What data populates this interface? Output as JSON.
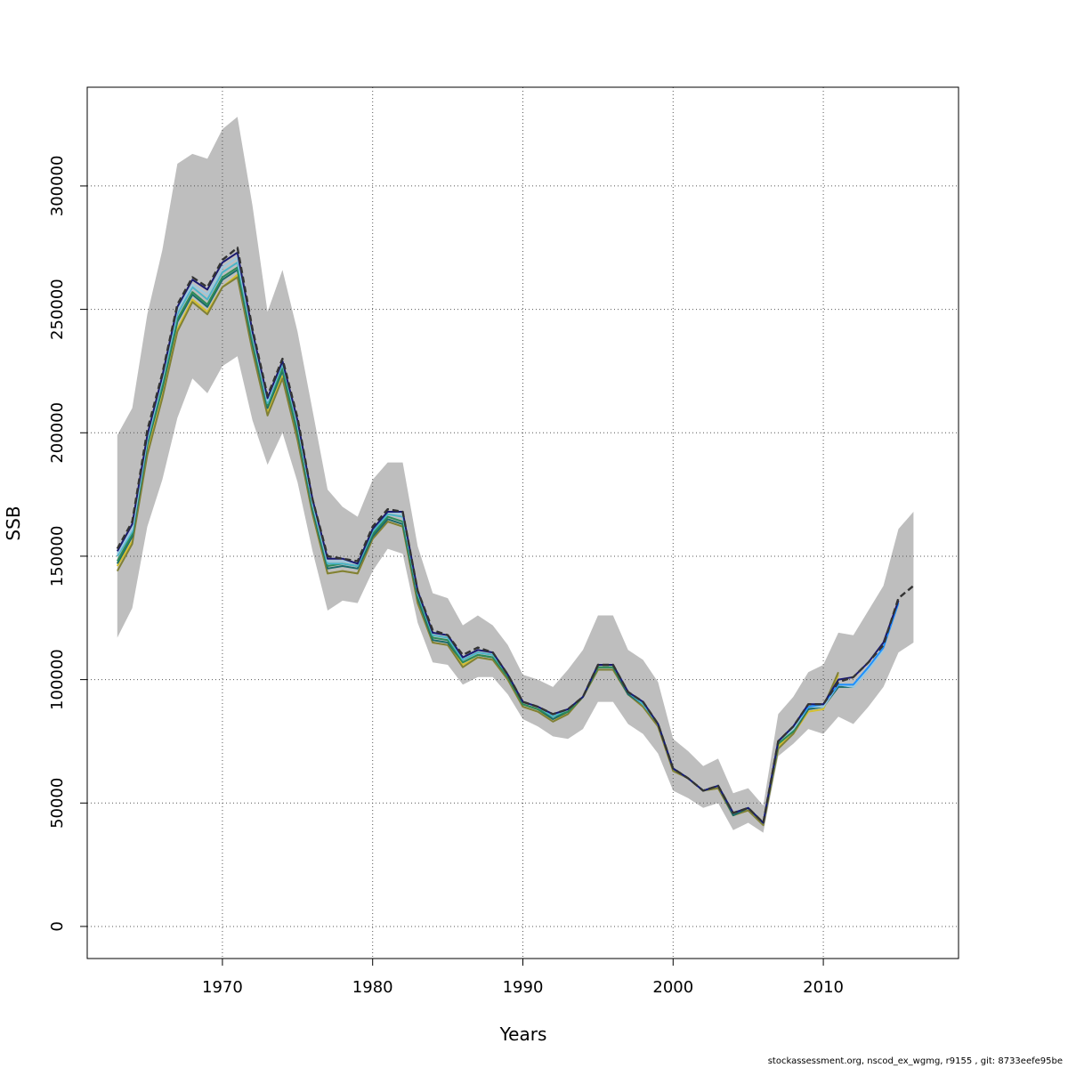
{
  "chart_data": {
    "type": "line",
    "xlabel": "Years",
    "ylabel": "SSB",
    "xlim": [
      1961,
      2019
    ],
    "ylim": [
      -13000,
      340000
    ],
    "x_ticks": [
      1970,
      1980,
      1990,
      2000,
      2010
    ],
    "y_ticks": [
      0,
      50000,
      100000,
      150000,
      200000,
      250000,
      300000
    ],
    "grid": true,
    "band_color": "#bebebe",
    "band": {
      "x": [
        1963,
        1964,
        1965,
        1966,
        1967,
        1968,
        1969,
        1970,
        1971,
        1972,
        1973,
        1974,
        1975,
        1976,
        1977,
        1978,
        1979,
        1980,
        1981,
        1982,
        1983,
        1984,
        1985,
        1986,
        1987,
        1988,
        1989,
        1990,
        1991,
        1992,
        1993,
        1994,
        1995,
        1996,
        1997,
        1998,
        1999,
        2000,
        2001,
        2002,
        2003,
        2004,
        2005,
        2006,
        2007,
        2008,
        2009,
        2010,
        2011,
        2012,
        2013,
        2014,
        2015,
        2016
      ],
      "lower": [
        117000,
        129000,
        162000,
        181000,
        206000,
        222000,
        216000,
        227000,
        231000,
        205000,
        187000,
        200000,
        180000,
        152000,
        128000,
        132000,
        131000,
        144000,
        153000,
        151000,
        123000,
        107000,
        106000,
        98000,
        101000,
        101000,
        94000,
        84000,
        81000,
        77000,
        76000,
        80000,
        91000,
        91000,
        82000,
        78000,
        70000,
        55000,
        52000,
        48000,
        50000,
        39000,
        42000,
        38000,
        69000,
        74000,
        80000,
        78000,
        85000,
        82000,
        89000,
        97000,
        111000,
        115000
      ],
      "upper": [
        199000,
        210000,
        248000,
        274000,
        309000,
        313000,
        311000,
        323000,
        328000,
        292000,
        249000,
        266000,
        241000,
        209000,
        177000,
        170000,
        166000,
        181000,
        188000,
        188000,
        154000,
        135000,
        133000,
        122000,
        126000,
        122000,
        114000,
        102000,
        100000,
        97000,
        104000,
        112000,
        126000,
        126000,
        112000,
        108000,
        99000,
        76000,
        71000,
        65000,
        68000,
        54000,
        56000,
        49000,
        86000,
        93000,
        103000,
        106000,
        119000,
        118000,
        128000,
        138000,
        161000,
        168000
      ]
    },
    "series": [
      {
        "color": "#d4c02c",
        "width": 2,
        "dash": "",
        "x": [
          1963,
          1964,
          1965,
          1966,
          1967,
          1968,
          1969,
          1970,
          1971,
          1972,
          1973,
          1974,
          1975,
          1976,
          1977,
          1978,
          1979,
          1980,
          1981,
          1982,
          1983,
          1984,
          1985,
          1986,
          1987,
          1988,
          1989,
          1990,
          1991,
          1992,
          1993,
          1994,
          1995,
          1996,
          1997,
          1998,
          1999,
          2000,
          2001,
          2002,
          2003,
          2004,
          2005,
          2006,
          2007,
          2008,
          2009,
          2010,
          2011
        ],
        "y": [
          146000,
          156000,
          192000,
          215000,
          242000,
          254000,
          249000,
          259000,
          264000,
          234000,
          208000,
          223000,
          198000,
          167000,
          143000,
          144000,
          143000,
          157000,
          164000,
          162000,
          131000,
          115000,
          114000,
          106000,
          109000,
          108000,
          100000,
          89000,
          87000,
          84000,
          86000,
          93000,
          104000,
          104000,
          94000,
          89000,
          81000,
          63000,
          60000,
          55000,
          56000,
          45000,
          47000,
          42000,
          73000,
          78000,
          87000,
          88000,
          102000
        ]
      },
      {
        "color": "#808036",
        "width": 2,
        "dash": "",
        "x": [
          1963,
          1964,
          1965,
          1966,
          1967,
          1968,
          1969,
          1970,
          1971,
          1972,
          1973,
          1974,
          1975,
          1976,
          1977,
          1978,
          1979,
          1980,
          1981,
          1982,
          1983,
          1984,
          1985,
          1986,
          1987,
          1988,
          1989,
          1990,
          1991,
          1992,
          1993,
          1994,
          1995,
          1996,
          1997,
          1998,
          1999,
          2000,
          2001,
          2002,
          2003,
          2004,
          2005,
          2006,
          2007,
          2008,
          2009,
          2010,
          2011
        ],
        "y": [
          144000,
          155000,
          191000,
          214000,
          241000,
          253000,
          248000,
          259000,
          263000,
          233000,
          207000,
          222000,
          197000,
          167000,
          143000,
          144000,
          143000,
          157000,
          164000,
          162000,
          131000,
          115000,
          114000,
          105000,
          109000,
          108000,
          100000,
          89000,
          87000,
          83000,
          86000,
          93000,
          104000,
          104000,
          94000,
          89000,
          81000,
          63000,
          60000,
          55000,
          56000,
          45000,
          47000,
          41000,
          72000,
          78000,
          88000,
          89000,
          103000
        ]
      },
      {
        "color": "#1a6b6b",
        "width": 2,
        "dash": "",
        "x": [
          1963,
          1964,
          1965,
          1966,
          1967,
          1968,
          1969,
          1970,
          1971,
          1972,
          1973,
          1974,
          1975,
          1976,
          1977,
          1978,
          1979,
          1980,
          1981,
          1982,
          1983,
          1984,
          1985,
          1986,
          1987,
          1988,
          1989,
          1990,
          1991,
          1992,
          1993,
          1994,
          1995,
          1996,
          1997,
          1998,
          1999,
          2000,
          2001,
          2002,
          2003,
          2004,
          2005,
          2006,
          2007,
          2008,
          2009,
          2010,
          2011,
          2012
        ],
        "y": [
          147000,
          158000,
          195000,
          218000,
          245000,
          256000,
          251000,
          262000,
          266000,
          236000,
          210000,
          225000,
          200000,
          169000,
          145000,
          146000,
          145000,
          158000,
          165000,
          163000,
          133000,
          116000,
          115000,
          107000,
          110000,
          109000,
          101000,
          90000,
          88000,
          84000,
          87000,
          93000,
          105000,
          105000,
          94000,
          90000,
          82000,
          64000,
          60000,
          55000,
          57000,
          45000,
          48000,
          42000,
          74000,
          79000,
          88000,
          89000,
          97000,
          97000
        ]
      },
      {
        "color": "#2e8b57",
        "width": 2,
        "dash": "",
        "x": [
          1963,
          1964,
          1965,
          1966,
          1967,
          1968,
          1969,
          1970,
          1971,
          1972,
          1973,
          1974,
          1975,
          1976,
          1977,
          1978,
          1979,
          1980,
          1981,
          1982,
          1983,
          1984,
          1985,
          1986,
          1987,
          1988,
          1989,
          1990,
          1991,
          1992,
          1993,
          1994,
          1995,
          1996,
          1997,
          1998,
          1999,
          2000,
          2001,
          2002,
          2003,
          2004,
          2005,
          2006,
          2007,
          2008,
          2009,
          2010,
          2011,
          2012
        ],
        "y": [
          148000,
          159000,
          196000,
          219000,
          246000,
          257000,
          252000,
          263000,
          267000,
          237000,
          211000,
          226000,
          201000,
          170000,
          146000,
          147000,
          146000,
          159000,
          166000,
          164000,
          134000,
          117000,
          116000,
          107000,
          110000,
          109000,
          101000,
          90000,
          88000,
          85000,
          87000,
          93000,
          105000,
          105000,
          95000,
          90000,
          82000,
          64000,
          60000,
          55000,
          57000,
          46000,
          48000,
          42000,
          74000,
          79000,
          89000,
          89000,
          98000,
          97000
        ]
      },
      {
        "color": "#4ab4c8",
        "width": 2,
        "dash": "",
        "x": [
          1963,
          1964,
          1965,
          1966,
          1967,
          1968,
          1969,
          1970,
          1971,
          1972,
          1973,
          1974,
          1975,
          1976,
          1977,
          1978,
          1979,
          1980,
          1981,
          1982,
          1983,
          1984,
          1985,
          1986,
          1987,
          1988,
          1989,
          1990,
          1991,
          1992,
          1993,
          1994,
          1995,
          1996,
          1997,
          1998,
          1999,
          2000,
          2001,
          2002,
          2003,
          2004,
          2005,
          2006,
          2007,
          2008,
          2009,
          2010,
          2011,
          2012,
          2013
        ],
        "y": [
          150000,
          160000,
          197000,
          221000,
          248000,
          259000,
          254000,
          265000,
          269000,
          239000,
          212000,
          228000,
          203000,
          171000,
          147000,
          147000,
          146000,
          160000,
          167000,
          166000,
          135000,
          118000,
          117000,
          108000,
          111000,
          110000,
          102000,
          91000,
          89000,
          85000,
          88000,
          93000,
          106000,
          106000,
          95000,
          90000,
          82000,
          64000,
          60000,
          55000,
          57000,
          46000,
          48000,
          42000,
          75000,
          80000,
          89000,
          89000,
          98000,
          97000,
          104000
        ]
      },
      {
        "color": "#9ac8e0",
        "width": 2,
        "dash": "",
        "x": [
          1963,
          1964,
          1965,
          1966,
          1967,
          1968,
          1969,
          1970,
          1971,
          1972,
          1973,
          1974,
          1975,
          1976,
          1977,
          1978,
          1979,
          1980,
          1981,
          1982,
          1983,
          1984,
          1985,
          1986,
          1987,
          1988,
          1989,
          1990,
          1991,
          1992,
          1993,
          1994,
          1995,
          1996,
          1997,
          1998,
          1999,
          2000,
          2001,
          2002,
          2003,
          2004,
          2005,
          2006,
          2007,
          2008,
          2009,
          2010,
          2011,
          2012,
          2013,
          2014
        ],
        "y": [
          151000,
          161000,
          198000,
          222000,
          250000,
          260000,
          256000,
          267000,
          271000,
          240000,
          213000,
          229000,
          204000,
          172000,
          148000,
          148000,
          147000,
          161000,
          168000,
          167000,
          136000,
          119000,
          118000,
          109000,
          112000,
          111000,
          102000,
          91000,
          89000,
          86000,
          88000,
          93000,
          106000,
          106000,
          95000,
          91000,
          82000,
          64000,
          60000,
          55000,
          57000,
          46000,
          48000,
          42000,
          75000,
          80000,
          89000,
          89000,
          98000,
          97000,
          104000,
          112000
        ]
      },
      {
        "color": "#1e90ff",
        "width": 2,
        "dash": "",
        "x": [
          2007,
          2008,
          2009,
          2010,
          2011,
          2012,
          2013,
          2014,
          2015
        ],
        "y": [
          75000,
          81000,
          89000,
          90000,
          98000,
          98000,
          105000,
          113000,
          131000
        ]
      },
      {
        "color": "#191970",
        "width": 2,
        "dash": "",
        "x": [
          1963,
          1964,
          1965,
          1966,
          1967,
          1968,
          1969,
          1970,
          1971,
          1972,
          1973,
          1974,
          1975,
          1976,
          1977,
          1978,
          1979,
          1980,
          1981,
          1982,
          1983,
          1984,
          1985,
          1986,
          1987,
          1988,
          1989,
          1990,
          1991,
          1992,
          1993,
          1994,
          1995,
          1996,
          1997,
          1998,
          1999,
          2000,
          2001,
          2002,
          2003,
          2004,
          2005,
          2006,
          2007,
          2008,
          2009,
          2010,
          2011,
          2012,
          2013,
          2014,
          2015
        ],
        "y": [
          152000,
          163000,
          199000,
          223000,
          251000,
          262000,
          258000,
          269000,
          273000,
          241000,
          214000,
          229000,
          205000,
          173000,
          149000,
          149000,
          147000,
          161000,
          168000,
          168000,
          136000,
          119000,
          118000,
          109000,
          112000,
          111000,
          102000,
          91000,
          89000,
          86000,
          88000,
          93000,
          106000,
          106000,
          95000,
          91000,
          82000,
          64000,
          60000,
          55000,
          57000,
          46000,
          48000,
          42000,
          75000,
          81000,
          90000,
          90000,
          100000,
          101000,
          107000,
          115000,
          132000
        ]
      },
      {
        "color": "#333333",
        "width": 2.4,
        "dash": "7,4",
        "x": [
          1963,
          1964,
          1965,
          1966,
          1967,
          1968,
          1969,
          1970,
          1971,
          1972,
          1973,
          1974,
          1975,
          1976,
          1977,
          1978,
          1979,
          1980,
          1981,
          1982,
          1983,
          1984,
          1985,
          1986,
          1987,
          1988,
          1989,
          1990,
          1991,
          1992,
          1993,
          1994,
          1995,
          1996,
          1997,
          1998,
          1999,
          2000,
          2001,
          2002,
          2003,
          2004,
          2005,
          2006,
          2007,
          2008,
          2009,
          2010,
          2011,
          2012,
          2013,
          2014,
          2015,
          2016
        ],
        "y": [
          153000,
          164000,
          201000,
          224000,
          252000,
          263000,
          259000,
          270000,
          275000,
          242000,
          215000,
          230000,
          206000,
          173000,
          150000,
          149000,
          148000,
          162000,
          169000,
          168000,
          136000,
          120000,
          118000,
          110000,
          113000,
          111000,
          102000,
          91000,
          89000,
          86000,
          88000,
          93000,
          106000,
          106000,
          95000,
          91000,
          82000,
          64000,
          60000,
          55000,
          57000,
          46000,
          48000,
          42000,
          75000,
          81000,
          90000,
          90000,
          99000,
          101000,
          107000,
          114000,
          133000,
          138000
        ]
      }
    ]
  },
  "footer": {
    "text": "stockassessment.org, nscod_ex_wgmg, r9155 , git: 8733eefe95be"
  }
}
